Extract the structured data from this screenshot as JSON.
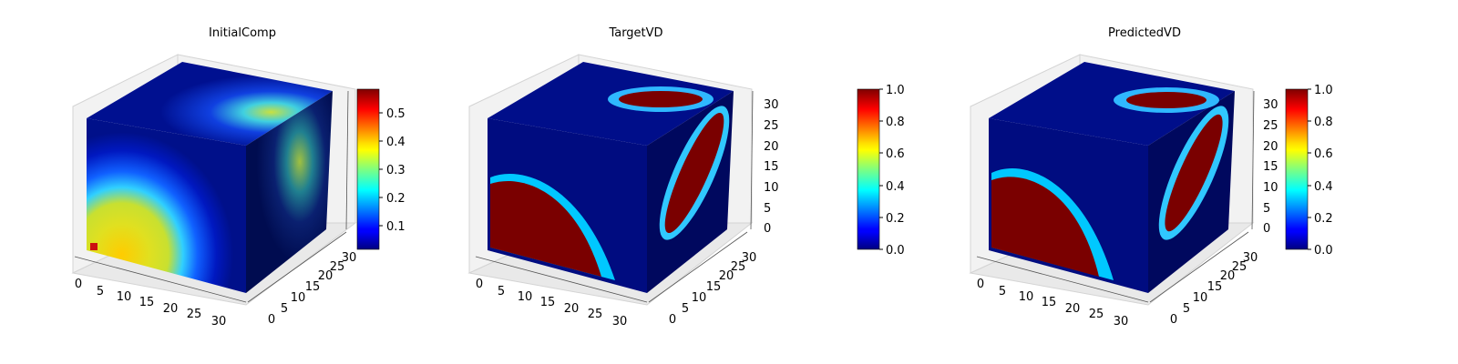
{
  "figure": {
    "panels": [
      {
        "title": "InitialComp",
        "xticks": [
          "0",
          "5",
          "10",
          "15",
          "20",
          "25",
          "30"
        ],
        "yticks": [
          "0",
          "5",
          "10",
          "15",
          "20",
          "25",
          "30"
        ],
        "zticks": [],
        "colorbar": {
          "ticks": [
            "0.1",
            "0.2",
            "0.3",
            "0.4",
            "0.5"
          ]
        }
      },
      {
        "title": "TargetVD",
        "xticks": [
          "0",
          "5",
          "10",
          "15",
          "20",
          "25",
          "30"
        ],
        "yticks": [
          "0",
          "5",
          "10",
          "15",
          "20",
          "25",
          "30"
        ],
        "zticks": [
          "0",
          "5",
          "10",
          "15",
          "20",
          "25",
          "30"
        ],
        "colorbar": {
          "ticks": [
            "0.0",
            "0.2",
            "0.4",
            "0.6",
            "0.8",
            "1.0"
          ]
        }
      },
      {
        "title": "PredictedVD",
        "xticks": [
          "0",
          "5",
          "10",
          "15",
          "20",
          "25",
          "30"
        ],
        "yticks": [
          "0",
          "5",
          "10",
          "15",
          "20",
          "25",
          "30"
        ],
        "zticks": [
          "0",
          "5",
          "10",
          "15",
          "20",
          "25",
          "30"
        ],
        "colorbar": {
          "ticks": [
            "0.0",
            "0.2",
            "0.4",
            "0.6",
            "0.8",
            "1.0"
          ]
        }
      }
    ]
  },
  "chart_data": [
    {
      "type": "heatmap",
      "title": "InitialComp",
      "colormap": "jet",
      "xlim": [
        0,
        32
      ],
      "ylim": [
        0,
        32
      ],
      "zlim": [
        0,
        32
      ],
      "color_range": [
        0.03,
        0.58
      ],
      "features": {
        "front_face_blob_value": 0.44,
        "front_face_corner_value": 0.58,
        "top_face_blob_value": 0.38,
        "right_face_blob_value": 0.33,
        "background_value": 0.05
      }
    },
    {
      "type": "heatmap",
      "title": "TargetVD",
      "colormap": "jet",
      "xlim": [
        0,
        32
      ],
      "ylim": [
        0,
        32
      ],
      "zlim": [
        0,
        32
      ],
      "color_range": [
        0.0,
        1.0
      ],
      "features": {
        "inside_value": 1.0,
        "outside_value": 0.0
      }
    },
    {
      "type": "heatmap",
      "title": "PredictedVD",
      "colormap": "jet",
      "xlim": [
        0,
        32
      ],
      "ylim": [
        0,
        32
      ],
      "zlim": [
        0,
        32
      ],
      "color_range": [
        0.0,
        1.0
      ],
      "features": {
        "inside_value": 1.0,
        "outside_value": 0.0
      }
    }
  ],
  "colors": {
    "low": "#00007f",
    "high": "#7f0000",
    "pane": "#f2f2f2",
    "pane_line": "#c8c8c8"
  }
}
